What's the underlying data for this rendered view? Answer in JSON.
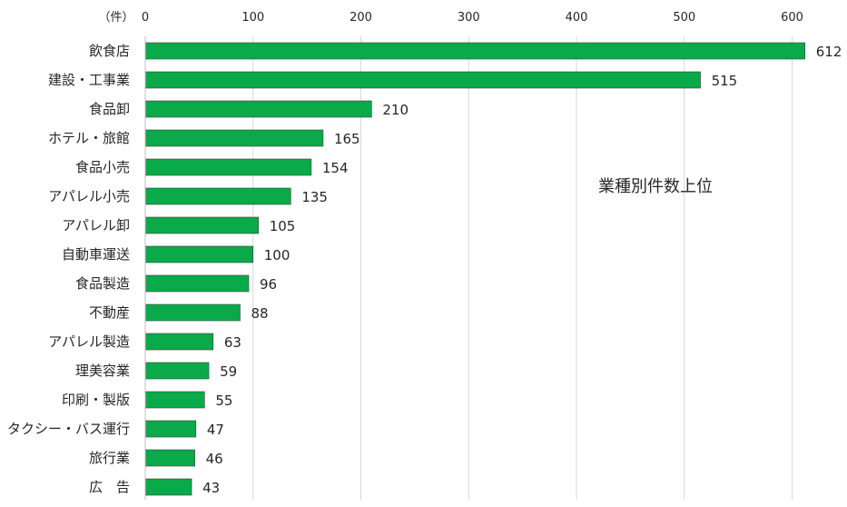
{
  "chart_data": {
    "type": "bar",
    "orientation": "horizontal",
    "title": "業種別件数上位",
    "unit_label": "（件）",
    "xlim": [
      0,
      612
    ],
    "x_ticks": [
      "0",
      "100",
      "200",
      "300",
      "400",
      "500",
      "600"
    ],
    "grid": true,
    "bar_color": "#0aaa4a",
    "categories": [
      "飲食店",
      "建設・工事業",
      "食品卸",
      "ホテル・旅館",
      "食品小売",
      "アパレル小売",
      "アパレル卸",
      "自動車運送",
      "食品製造",
      "不動産",
      "アパレル製造",
      "理美容業",
      "印刷・製版",
      "タクシー・バス運行",
      "旅行業",
      "広　告"
    ],
    "values": [
      612,
      515,
      210,
      165,
      154,
      135,
      105,
      100,
      96,
      88,
      63,
      59,
      55,
      47,
      46,
      43
    ]
  }
}
